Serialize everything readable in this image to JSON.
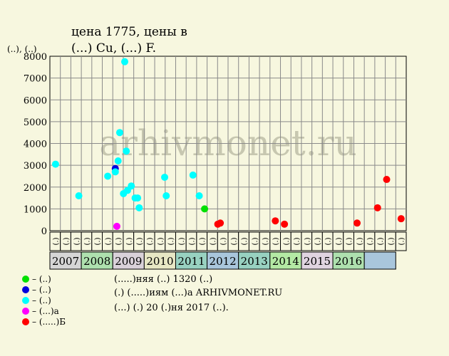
{
  "title_line1": "ценa 1775, цены в",
  "title_line2": "(...) Cu, (...) F.",
  "y_unit_label": "(..), (..)",
  "watermark": "arhivmonet.ru",
  "chart_data": {
    "type": "scatter",
    "title": "цена 1775, цены в ... Cu, ... F.",
    "ylabel": "(..), (..)",
    "ylim": [
      0,
      8000
    ],
    "yticks": [
      0,
      1000,
      2000,
      3000,
      4000,
      5000,
      6000,
      7000,
      8000
    ],
    "grid": true,
    "x_unit": "month",
    "years": [
      "2007",
      "2008",
      "2009",
      "2010",
      "2011",
      "2012",
      "2013",
      "2014",
      "2015",
      "2016"
    ],
    "year_colors": [
      "#d6d6d6",
      "#aee0ae",
      "#d9d1d9",
      "#e7e7c4",
      "#98d1c0",
      "#a9c6dc",
      "#98d1c0",
      "#b4e9a4",
      "#e0d4e0",
      "#aee0ae",
      "#a9c6dc"
    ],
    "subperiod_labels": [
      "(.)",
      "(.)",
      "(.)",
      "(.)"
    ],
    "series": [
      {
        "name": "– (..)",
        "color": "#00e000",
        "points": [
          {
            "x": 2010.92,
            "y": 1000
          }
        ]
      },
      {
        "name": "– (..)",
        "color": "#0000dd",
        "points": [
          {
            "x": 2008.08,
            "y": 2850
          }
        ]
      },
      {
        "name": "– (..)",
        "color": "#00ffff",
        "points": [
          {
            "x": 2006.18,
            "y": 3050
          },
          {
            "x": 2006.92,
            "y": 1600
          },
          {
            "x": 2007.84,
            "y": 2500
          },
          {
            "x": 2008.08,
            "y": 2700
          },
          {
            "x": 2008.17,
            "y": 3200
          },
          {
            "x": 2008.22,
            "y": 4500
          },
          {
            "x": 2008.38,
            "y": 7750
          },
          {
            "x": 2008.43,
            "y": 3650
          },
          {
            "x": 2008.34,
            "y": 1700
          },
          {
            "x": 2008.47,
            "y": 1850
          },
          {
            "x": 2008.59,
            "y": 2050
          },
          {
            "x": 2008.71,
            "y": 1500
          },
          {
            "x": 2008.79,
            "y": 1500
          },
          {
            "x": 2008.84,
            "y": 1050
          },
          {
            "x": 2009.65,
            "y": 2450
          },
          {
            "x": 2009.7,
            "y": 1600
          },
          {
            "x": 2010.55,
            "y": 2550
          },
          {
            "x": 2010.75,
            "y": 1600
          }
        ]
      },
      {
        "name": "– (...)а",
        "color": "#ff00ff",
        "points": [
          {
            "x": 2008.13,
            "y": 200
          }
        ]
      },
      {
        "name": "– (.....)Б",
        "color": "#ff0000",
        "points": [
          {
            "x": 2011.34,
            "y": 300
          },
          {
            "x": 2011.42,
            "y": 350
          },
          {
            "x": 2013.17,
            "y": 450
          },
          {
            "x": 2013.46,
            "y": 300
          },
          {
            "x": 2015.77,
            "y": 350
          },
          {
            "x": 2016.42,
            "y": 1050
          },
          {
            "x": 2016.71,
            "y": 2350
          },
          {
            "x": 2017.17,
            "y": 550
          }
        ]
      }
    ]
  },
  "footer": {
    "line1": "(.....)няя (..) 1320 (..)",
    "line2": "(.) (.....)иям (...)а ARHIVMONET.RU",
    "line3": "(...) (.) 20 (.)ня 2017 (..)."
  }
}
